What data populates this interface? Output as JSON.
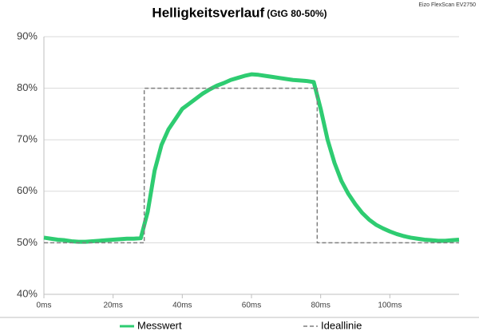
{
  "chart_data": {
    "type": "line",
    "title": "Helligkeitsverlauf",
    "subtitle": "(GtG 80-50%)",
    "source": "Eizo FlexScan EV2750",
    "xlim": [
      0,
      120
    ],
    "xticks": [
      {
        "value": 0,
        "label": "0ms"
      },
      {
        "value": 20,
        "label": "20ms"
      },
      {
        "value": 40,
        "label": "40ms"
      },
      {
        "value": 60,
        "label": "60ms"
      },
      {
        "value": 80,
        "label": "80ms"
      },
      {
        "value": 100,
        "label": "100ms"
      }
    ],
    "ylim": [
      40,
      90
    ],
    "yticks": [
      {
        "value": 40,
        "label": "40%"
      },
      {
        "value": 50,
        "label": "50%"
      },
      {
        "value": 60,
        "label": "60%"
      },
      {
        "value": 70,
        "label": "70%"
      },
      {
        "value": 80,
        "label": "80%"
      },
      {
        "value": 90,
        "label": "90%"
      }
    ],
    "grid": true,
    "legend": "bottom",
    "series": [
      {
        "name": "Messwert",
        "color": "#2ecc71",
        "dash": false,
        "x": [
          0,
          2,
          4,
          6,
          8,
          10,
          12,
          14,
          16,
          18,
          20,
          22,
          24,
          26,
          28,
          30,
          32,
          34,
          36,
          38,
          40,
          42,
          44,
          46,
          48,
          50,
          52,
          54,
          56,
          58,
          60,
          62,
          64,
          66,
          68,
          70,
          72,
          74,
          76,
          78,
          80,
          82,
          84,
          86,
          88,
          90,
          92,
          94,
          96,
          98,
          100,
          102,
          104,
          106,
          108,
          110,
          112,
          114,
          116,
          118,
          120
        ],
        "values": [
          51,
          50.8,
          50.6,
          50.5,
          50.3,
          50.2,
          50.2,
          50.3,
          50.4,
          50.5,
          50.6,
          50.7,
          50.8,
          50.8,
          50.9,
          56,
          64,
          69,
          72,
          74,
          76,
          77,
          78,
          79,
          79.8,
          80.5,
          81,
          81.6,
          82,
          82.4,
          82.7,
          82.6,
          82.4,
          82.2,
          82,
          81.8,
          81.6,
          81.5,
          81.4,
          81.2,
          76,
          70,
          65.5,
          62,
          59.5,
          57.5,
          55.8,
          54.5,
          53.5,
          52.8,
          52.2,
          51.7,
          51.3,
          51,
          50.8,
          50.6,
          50.5,
          50.4,
          50.4,
          50.5,
          50.6
        ]
      },
      {
        "name": "Ideallinie",
        "color": "#7f7f7f",
        "dash": true,
        "x": [
          0,
          29,
          29,
          79,
          79,
          120
        ],
        "values": [
          50,
          50,
          80,
          80,
          50,
          50
        ]
      }
    ]
  }
}
